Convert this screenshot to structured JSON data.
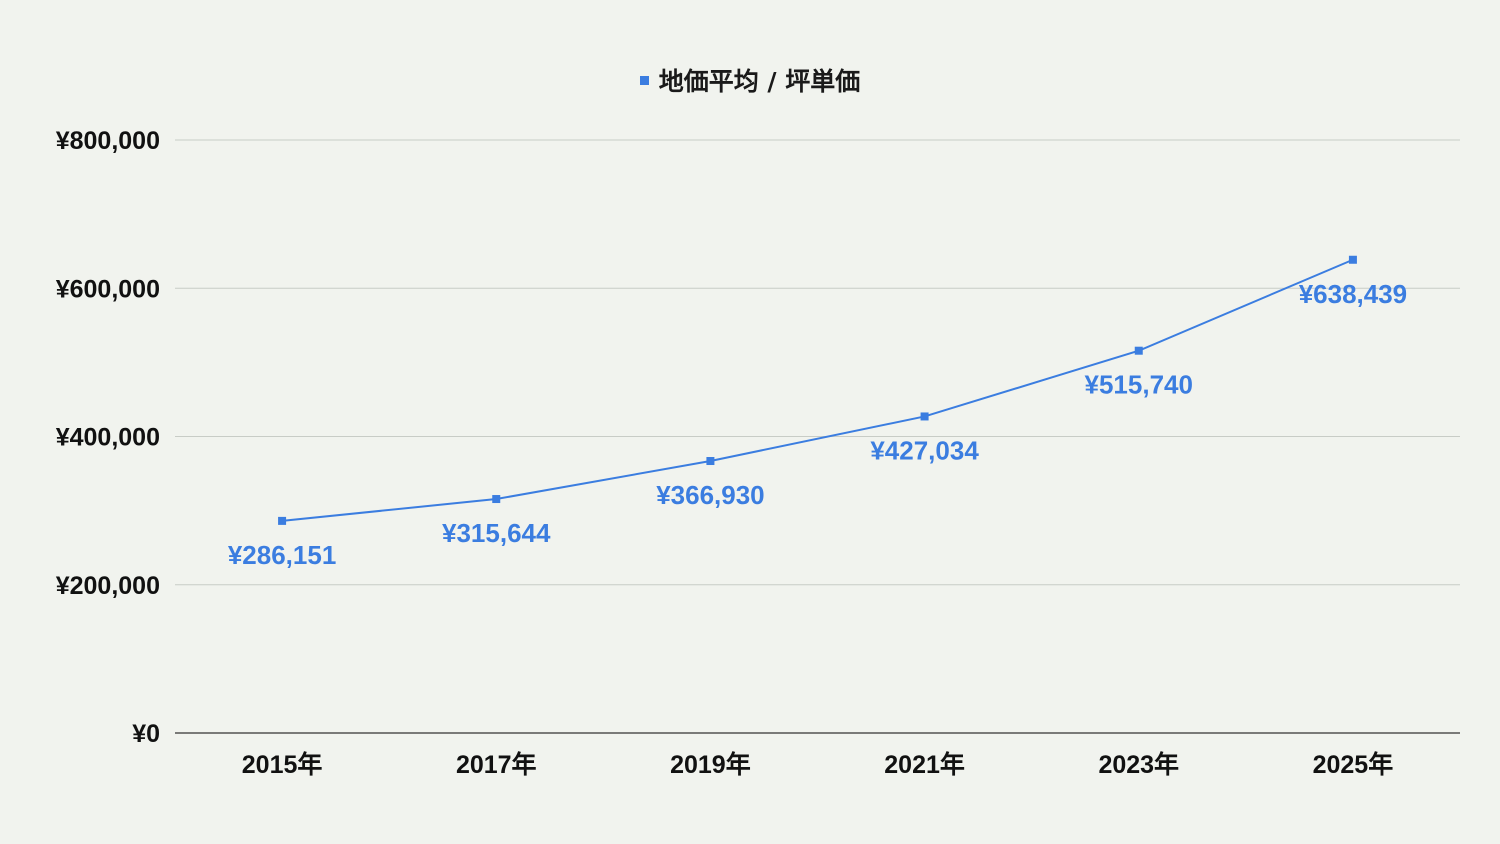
{
  "chart_data": {
    "type": "line",
    "title": "",
    "xlabel": "",
    "ylabel": "",
    "categories": [
      "2015年",
      "2017年",
      "2019年",
      "2021年",
      "2023年",
      "2025年"
    ],
    "series": [
      {
        "name": "地価平均 / 坪単価",
        "values": [
          286151,
          315644,
          366930,
          427034,
          515740,
          638439
        ],
        "data_labels": [
          "¥286,151",
          "¥315,644",
          "¥366,930",
          "¥427,034",
          "¥515,740",
          "¥638,439"
        ],
        "color": "#3b7de0"
      }
    ],
    "ylim": [
      0,
      800000
    ],
    "y_ticks": [
      0,
      200000,
      400000,
      600000,
      800000
    ],
    "y_tick_labels": [
      "¥0",
      "¥200,000",
      "¥400,000",
      "¥600,000",
      "¥800,000"
    ],
    "grid": true,
    "legend_position": "top-center",
    "background": "#f1f3ee",
    "gridline_color": "#c8ccc6",
    "axis_color": "#333333"
  }
}
